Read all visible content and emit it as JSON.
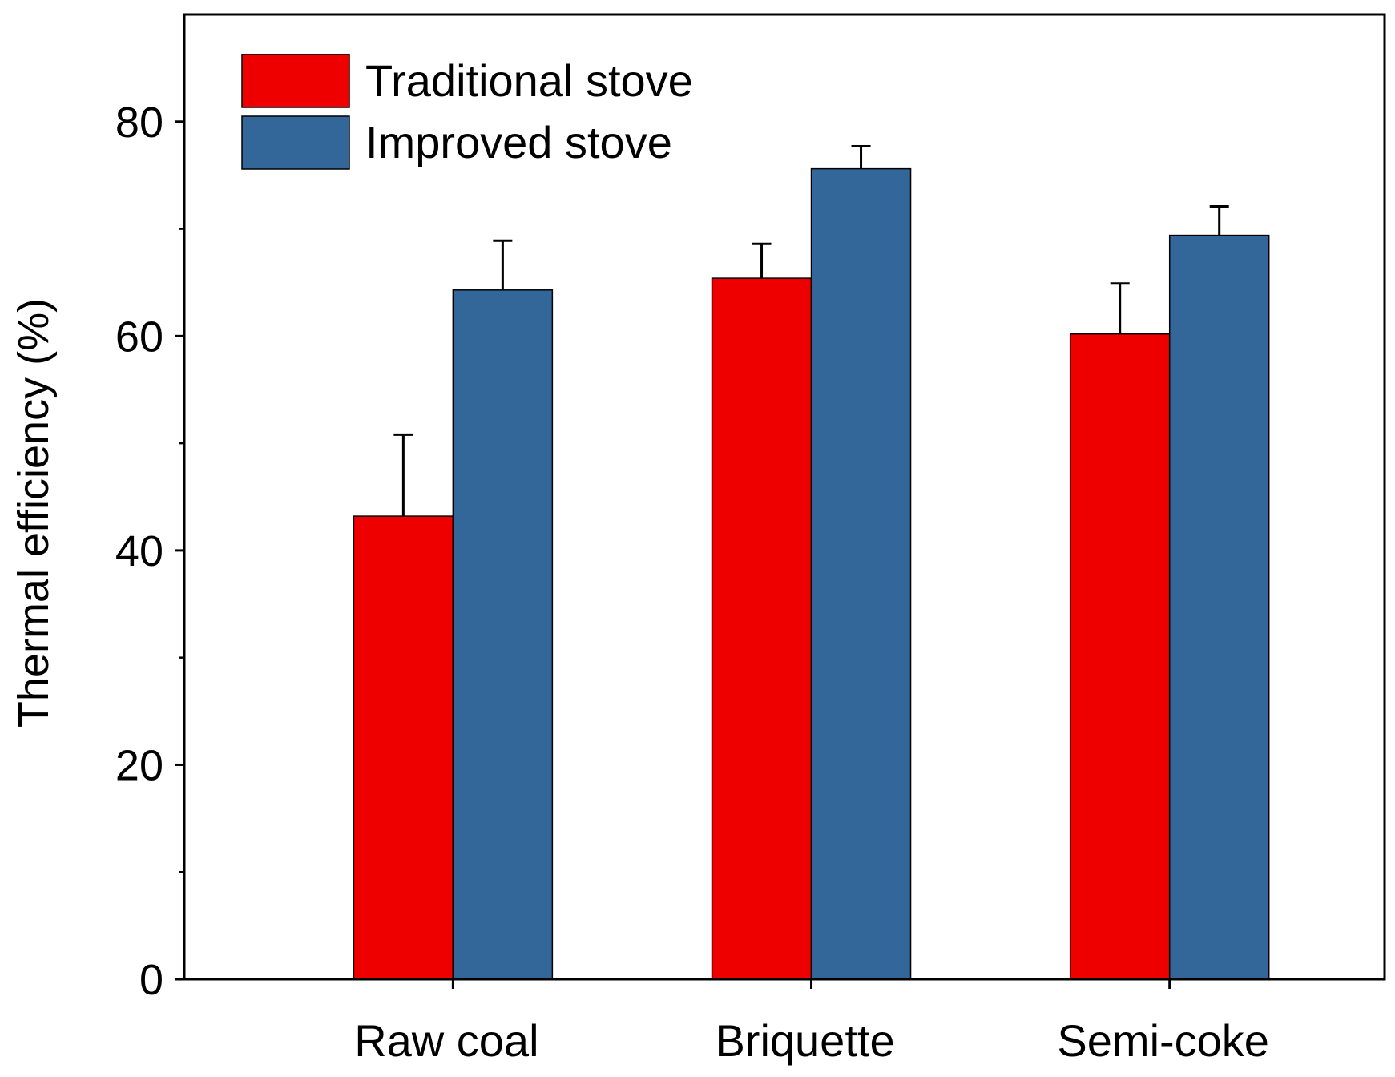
{
  "chart_data": {
    "type": "bar",
    "title": "",
    "xlabel": "",
    "ylabel": "Thermal efficiency (%)",
    "ylim": [
      0,
      90
    ],
    "yticks": [
      0,
      20,
      40,
      60,
      80
    ],
    "yminor_ticks": [
      10,
      30,
      50,
      70
    ],
    "grid": false,
    "legend_position": "top-left",
    "categories": [
      "Raw coal",
      "Briquette",
      "Semi-coke"
    ],
    "series": [
      {
        "name": "Traditional stove",
        "color": "#EE0000",
        "values": [
          43.2,
          65.4,
          60.2
        ],
        "errors": [
          7.6,
          3.2,
          4.7
        ]
      },
      {
        "name": "Improved stove",
        "color": "#336699",
        "values": [
          64.3,
          75.6,
          69.4
        ],
        "errors": [
          4.6,
          2.1,
          2.7
        ]
      }
    ]
  }
}
